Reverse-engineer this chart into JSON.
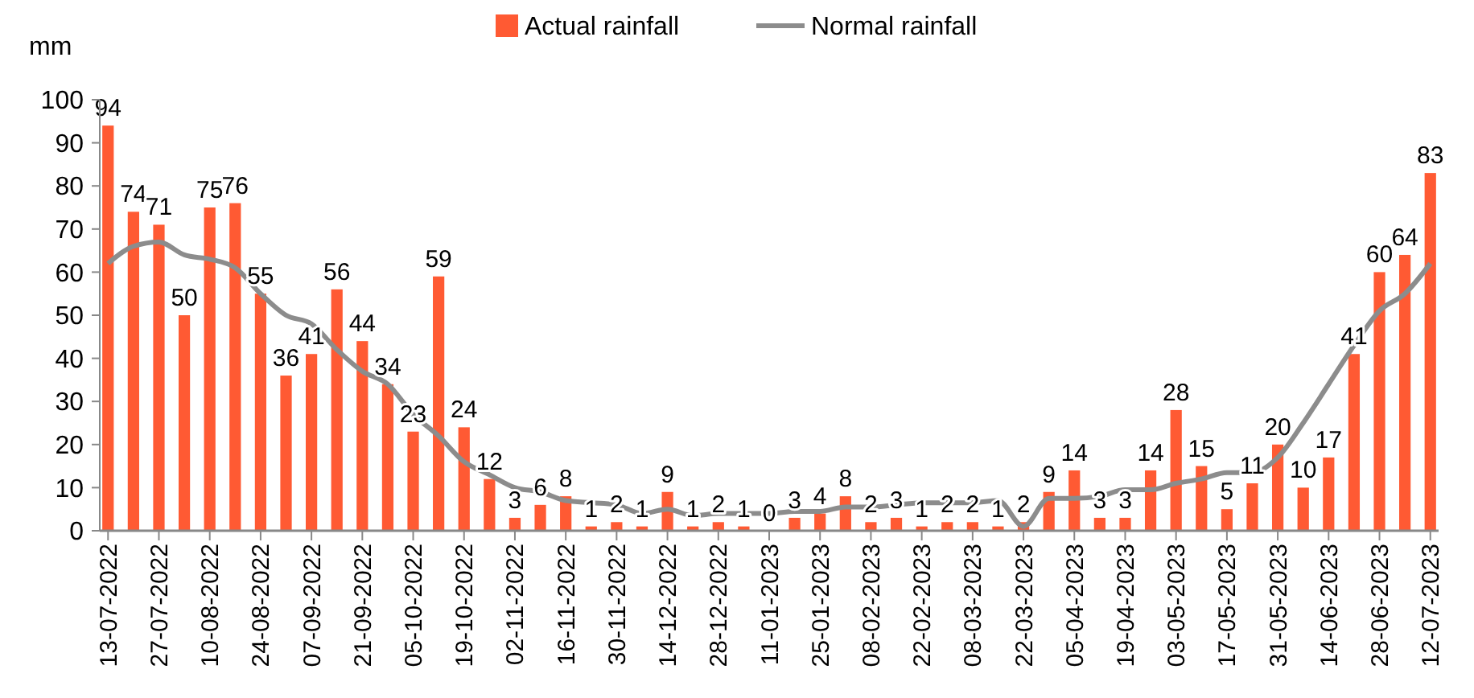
{
  "chart_data": {
    "type": "bar",
    "ylabel": "mm",
    "categories": [
      "13-07-2022",
      null,
      "27-07-2022",
      null,
      "10-08-2022",
      null,
      "24-08-2022",
      null,
      "07-09-2022",
      null,
      "21-09-2022",
      null,
      "05-10-2022",
      null,
      "19-10-2022",
      null,
      "02-11-2022",
      null,
      "16-11-2022",
      null,
      "30-11-2022",
      null,
      "14-12-2022",
      null,
      "28-12-2022",
      null,
      "11-01-2023",
      null,
      "25-01-2023",
      null,
      "08-02-2023",
      null,
      "22-02-2023",
      null,
      "08-03-2023",
      null,
      "22-03-2023",
      null,
      "05-04-2023",
      null,
      "19-04-2023",
      null,
      "03-05-2023",
      null,
      "17-05-2023",
      null,
      "31-05-2023",
      null,
      "14-06-2023",
      null,
      "28-06-2023",
      null,
      "12-07-2023"
    ],
    "series": [
      {
        "name": "Actual rainfall",
        "color": "#ff5a33",
        "data_labels": true,
        "values": [
          94,
          74,
          71,
          50,
          75,
          76,
          55,
          36,
          41,
          56,
          44,
          34,
          23,
          59,
          24,
          12,
          3,
          6,
          8,
          1,
          2,
          1,
          9,
          1,
          2,
          1,
          0,
          3,
          4,
          8,
          2,
          3,
          1,
          2,
          2,
          1,
          2,
          9,
          14,
          3,
          3,
          14,
          28,
          15,
          5,
          11,
          20,
          10,
          17,
          41,
          60,
          64,
          83
        ]
      },
      {
        "name": "Normal rainfall",
        "type": "line",
        "color": "#8c8c8c",
        "marker": "none",
        "values": [
          62,
          66,
          67,
          64,
          63,
          61,
          55,
          50,
          48,
          42,
          37,
          34,
          27,
          22,
          16,
          13,
          10,
          9,
          7,
          6.5,
          6,
          4,
          5,
          3.5,
          4,
          4,
          4,
          4.5,
          4.5,
          5.5,
          5.5,
          6,
          6.5,
          6.5,
          6.5,
          7,
          1,
          7.5,
          7.5,
          8,
          9.5,
          9.5,
          11,
          12,
          13.5,
          13.5,
          17,
          25,
          34,
          43,
          51,
          55,
          62
        ]
      }
    ],
    "ylim": [
      0,
      100
    ],
    "yticks": [
      0,
      10,
      20,
      30,
      40,
      50,
      60,
      70,
      80,
      90,
      100
    ],
    "grid": false,
    "legend": "top"
  }
}
